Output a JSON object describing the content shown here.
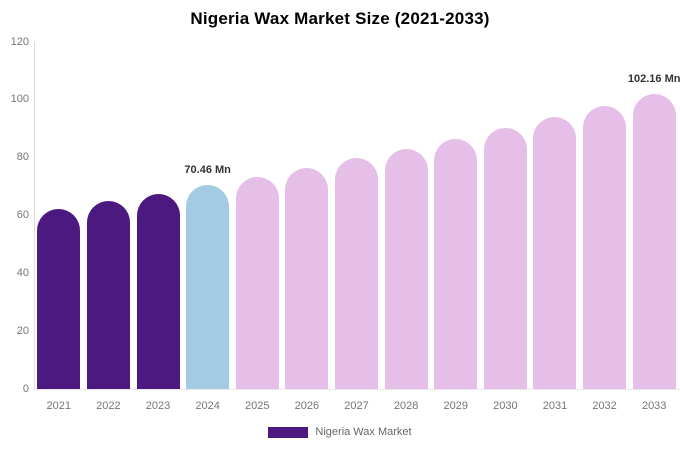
{
  "title": "Nigeria Wax Market Size (2021-2033)",
  "legend": {
    "label": "Nigeria Wax Market",
    "swatch_color": "#4C1980"
  },
  "annotations": [
    {
      "category": "2024",
      "text": "70.46 Mn"
    },
    {
      "category": "2033",
      "text": "102.16 Mn"
    }
  ],
  "colors": {
    "historical_bar": "#4C1980",
    "base_year_bar": "#A3CBE1",
    "forecast_bar": "#E5BFE8",
    "axis_text": "#757575",
    "value_label_text": "#333333",
    "axis_line": "#dcdcdc",
    "title_text": "#000000"
  },
  "chart_data": {
    "type": "bar",
    "title": "Nigeria Wax Market Size (2021-2033)",
    "xlabel": "",
    "ylabel": "",
    "categories": [
      "2021",
      "2022",
      "2023",
      "2024",
      "2025",
      "2026",
      "2027",
      "2028",
      "2029",
      "2030",
      "2031",
      "2032",
      "2033"
    ],
    "values": [
      62.3,
      64.9,
      67.6,
      70.46,
      73.4,
      76.5,
      79.8,
      83.1,
      86.6,
      90.3,
      94.1,
      98.0,
      102.16
    ],
    "series_name": "Nigeria Wax Market",
    "bar_colors": [
      "#4C1980",
      "#4C1980",
      "#4C1980",
      "#A3CBE1",
      "#E5BFE8",
      "#E5BFE8",
      "#E5BFE8",
      "#E5BFE8",
      "#E5BFE8",
      "#E5BFE8",
      "#E5BFE8",
      "#E5BFE8",
      "#E5BFE8"
    ],
    "ylim": [
      0,
      120
    ],
    "yticks": [
      0,
      20,
      40,
      60,
      80,
      100,
      120
    ],
    "grid": false,
    "legend_position": "bottom",
    "data_labels": [
      {
        "category": "2024",
        "label": "70.46 Mn"
      },
      {
        "category": "2033",
        "label": "102.16 Mn"
      }
    ]
  }
}
